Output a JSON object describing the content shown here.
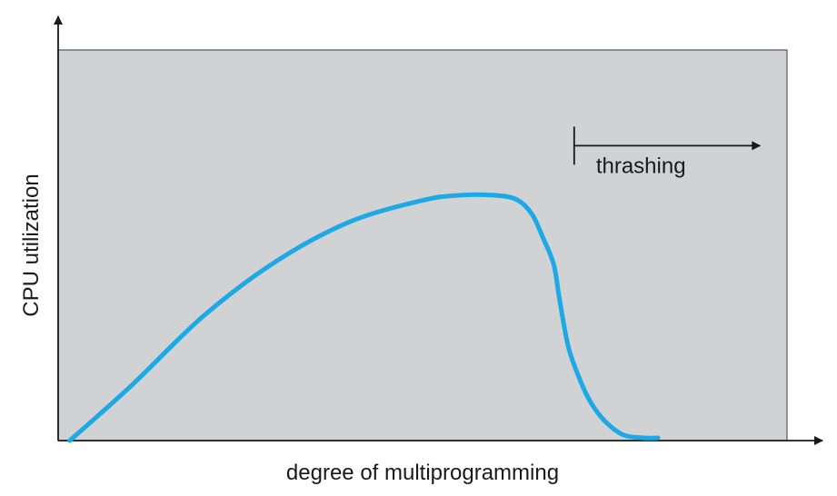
{
  "chart_data": {
    "type": "line",
    "title": "",
    "xlabel": "degree of multiprogramming",
    "ylabel": "CPU utilization",
    "xlim": [
      0,
      100
    ],
    "ylim": [
      0,
      100
    ],
    "grid": false,
    "ticks": false,
    "colors": {
      "plot_background": "#d1d2d4",
      "curve": "#1ca9e6",
      "axis": "#1a1a1a"
    },
    "series": [
      {
        "x": [
          1.6,
          10,
          20,
          30,
          40,
          50,
          55,
          60,
          63,
          65,
          66.5,
          68,
          68.8,
          70,
          71.5,
          73,
          75,
          77.5,
          80.2,
          82.3
        ],
        "y": [
          0,
          14,
          32,
          46,
          56,
          61.5,
          62.8,
          62.8,
          61.6,
          58,
          52,
          45,
          36,
          24,
          16,
          10,
          5,
          1.5,
          0.7,
          0.7
        ]
      }
    ],
    "annotations": [
      {
        "text": "thrashing",
        "marker_x": 70.8,
        "arrow_to_x": 96.3,
        "y": 75.5
      }
    ]
  }
}
